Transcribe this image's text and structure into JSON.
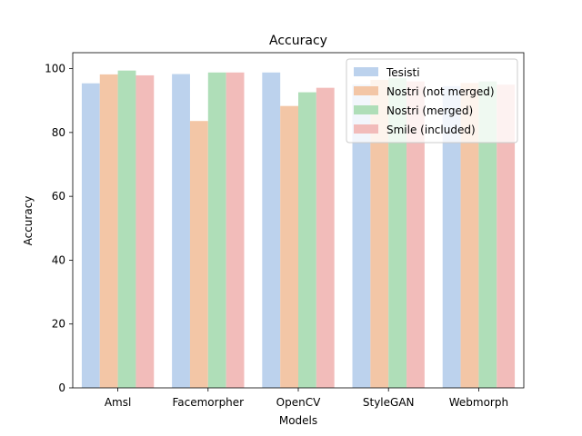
{
  "chart_data": {
    "type": "bar",
    "title": "Accuracy",
    "xlabel": "Models",
    "ylabel": "Accuracy",
    "categories": [
      "Amsl",
      "Facemorpher",
      "OpenCV",
      "StyleGAN",
      "Webmorph"
    ],
    "ylim": [
      0,
      105
    ],
    "yticks": [
      0,
      20,
      40,
      60,
      80,
      100
    ],
    "grid": false,
    "legend_position": "top-right",
    "series": [
      {
        "name": "Tesisti",
        "color": "#bcd2ed",
        "values": [
          95.4,
          98.3,
          98.8,
          95.0,
          94.5
        ]
      },
      {
        "name": "Nostri (not merged)",
        "color": "#f3c6a6",
        "values": [
          98.2,
          83.6,
          88.3,
          96.5,
          95.5
        ]
      },
      {
        "name": "Nostri (merged)",
        "color": "#afdeb8",
        "values": [
          99.4,
          98.8,
          92.6,
          97.0,
          96.0
        ]
      },
      {
        "name": "Smile (included)",
        "color": "#f2bcba",
        "values": [
          97.9,
          98.8,
          94.0,
          96.0,
          95.0
        ]
      }
    ]
  }
}
